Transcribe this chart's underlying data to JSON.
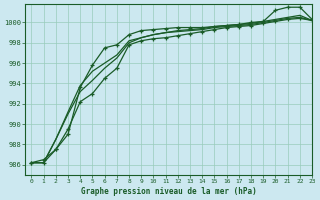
{
  "title": "Graphe pression niveau de la mer (hPa)",
  "bg_color": "#cce8f0",
  "grid_color": "#99ccbb",
  "line_color": "#1a5c28",
  "xlim": [
    -0.5,
    23
  ],
  "ylim": [
    985.0,
    1001.8
  ],
  "yticks": [
    986,
    988,
    990,
    992,
    994,
    996,
    998,
    1000
  ],
  "xticks": [
    0,
    1,
    2,
    3,
    4,
    5,
    6,
    7,
    8,
    9,
    10,
    11,
    12,
    13,
    14,
    15,
    16,
    17,
    18,
    19,
    20,
    21,
    22,
    23
  ],
  "series": [
    [
      986.2,
      986.2,
      987.5,
      989.5,
      992.2,
      993.0,
      994.5,
      995.5,
      997.8,
      998.2,
      998.4,
      998.5,
      998.7,
      998.9,
      999.1,
      999.3,
      999.5,
      999.6,
      999.7,
      999.9,
      1000.1,
      1000.3,
      1000.4,
      1000.2
    ],
    [
      986.2,
      986.2,
      988.5,
      991.0,
      993.2,
      994.3,
      995.5,
      996.5,
      998.0,
      998.5,
      998.8,
      999.0,
      999.1,
      999.2,
      999.3,
      999.5,
      999.6,
      999.7,
      999.8,
      1000.0,
      1000.2,
      1000.4,
      1000.5,
      1000.2
    ],
    [
      986.2,
      986.2,
      988.5,
      991.2,
      993.8,
      995.2,
      996.0,
      996.8,
      998.2,
      998.5,
      998.8,
      999.0,
      999.2,
      999.3,
      999.4,
      999.6,
      999.7,
      999.8,
      999.9,
      1000.1,
      1000.3,
      1000.5,
      1000.7,
      1000.2
    ],
    [
      986.2,
      986.5,
      987.5,
      989.0,
      993.6,
      995.8,
      997.5,
      997.8,
      998.8,
      999.2,
      999.3,
      999.4,
      999.5,
      999.5,
      999.5,
      999.6,
      999.7,
      999.8,
      1000.0,
      1000.1,
      1001.2,
      1001.5,
      1001.5,
      1000.3
    ]
  ],
  "markers": [
    true,
    false,
    false,
    true
  ]
}
